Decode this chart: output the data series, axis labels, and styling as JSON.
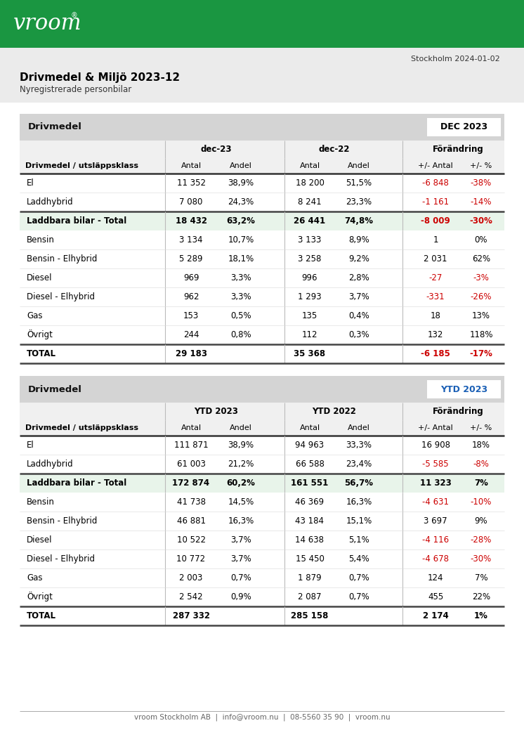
{
  "title": "Drivmedel & Miljö 2023-12",
  "subtitle": "Nyregistrerade personbilar",
  "date": "Stockholm 2024-01-02",
  "footer": "vroom Stockholm AB  |  info@vroom.nu  |  08-5560 35 90  |  vroom.nu",
  "page_bg": "#f0f0f0",
  "content_bg": "#ffffff",
  "header_bg": "#1a9641",
  "section_bg": "#d4d4d4",
  "table_row_bg": "#ffffff",
  "highlight_bg": "#e8f4ea",
  "red_color": "#cc0000",
  "black_color": "#000000",
  "gray_color": "#555555",
  "dec_badge_text": "#000000",
  "ytd_badge_text": "#1a5fb5",
  "dec_section_label": "Drivmedel",
  "dec_badge_label": "DEC 2023",
  "ytd_section_label": "Drivmedel",
  "ytd_badge_label": "YTD 2023",
  "table1": {
    "col_groups": [
      "dec-23",
      "dec-22",
      "Förändring"
    ],
    "col_subheaders": [
      "Antal",
      "Andel",
      "Antal",
      "Andel",
      "+/- Antal",
      "+/- %"
    ],
    "row_header": "Drivmedel / utsläppsklass",
    "rows": [
      {
        "label": "El",
        "vals": [
          "11 352",
          "38,9%",
          "18 200",
          "51,5%",
          "-6 848",
          "-38%"
        ],
        "neg": [
          false,
          false,
          false,
          false,
          true,
          true
        ],
        "bold": false,
        "highlight": false,
        "sep_above": false
      },
      {
        "label": "Laddhybrid",
        "vals": [
          "7 080",
          "24,3%",
          "8 241",
          "23,3%",
          "-1 161",
          "-14%"
        ],
        "neg": [
          false,
          false,
          false,
          false,
          true,
          true
        ],
        "bold": false,
        "highlight": false,
        "sep_above": false
      },
      {
        "label": "Laddbara bilar - Total",
        "vals": [
          "18 432",
          "63,2%",
          "26 441",
          "74,8%",
          "-8 009",
          "-30%"
        ],
        "neg": [
          false,
          false,
          false,
          false,
          true,
          true
        ],
        "bold": true,
        "highlight": true,
        "sep_above": true
      },
      {
        "label": "Bensin",
        "vals": [
          "3 134",
          "10,7%",
          "3 133",
          "8,9%",
          "1",
          "0%"
        ],
        "neg": [
          false,
          false,
          false,
          false,
          false,
          false
        ],
        "bold": false,
        "highlight": false,
        "sep_above": false
      },
      {
        "label": "Bensin - Elhybrid",
        "vals": [
          "5 289",
          "18,1%",
          "3 258",
          "9,2%",
          "2 031",
          "62%"
        ],
        "neg": [
          false,
          false,
          false,
          false,
          false,
          false
        ],
        "bold": false,
        "highlight": false,
        "sep_above": false
      },
      {
        "label": "Diesel",
        "vals": [
          "969",
          "3,3%",
          "996",
          "2,8%",
          "-27",
          "-3%"
        ],
        "neg": [
          false,
          false,
          false,
          false,
          true,
          true
        ],
        "bold": false,
        "highlight": false,
        "sep_above": false
      },
      {
        "label": "Diesel - Elhybrid",
        "vals": [
          "962",
          "3,3%",
          "1 293",
          "3,7%",
          "-331",
          "-26%"
        ],
        "neg": [
          false,
          false,
          false,
          false,
          true,
          true
        ],
        "bold": false,
        "highlight": false,
        "sep_above": false
      },
      {
        "label": "Gas",
        "vals": [
          "153",
          "0,5%",
          "135",
          "0,4%",
          "18",
          "13%"
        ],
        "neg": [
          false,
          false,
          false,
          false,
          false,
          false
        ],
        "bold": false,
        "highlight": false,
        "sep_above": false
      },
      {
        "label": "Övrigt",
        "vals": [
          "244",
          "0,8%",
          "112",
          "0,3%",
          "132",
          "118%"
        ],
        "neg": [
          false,
          false,
          false,
          false,
          false,
          false
        ],
        "bold": false,
        "highlight": false,
        "sep_above": false
      },
      {
        "label": "TOTAL",
        "vals": [
          "29 183",
          "",
          "35 368",
          "",
          "-6 185",
          "-17%"
        ],
        "neg": [
          false,
          false,
          false,
          false,
          true,
          true
        ],
        "bold": true,
        "highlight": false,
        "sep_above": true
      }
    ]
  },
  "table2": {
    "col_groups": [
      "YTD 2023",
      "YTD 2022",
      "Förändring"
    ],
    "col_subheaders": [
      "Antal",
      "Andel",
      "Antal",
      "Andel",
      "+/- Antal",
      "+/- %"
    ],
    "row_header": "Drivmedel / utsläppsklass",
    "rows": [
      {
        "label": "El",
        "vals": [
          "111 871",
          "38,9%",
          "94 963",
          "33,3%",
          "16 908",
          "18%"
        ],
        "neg": [
          false,
          false,
          false,
          false,
          false,
          false
        ],
        "bold": false,
        "highlight": false,
        "sep_above": false
      },
      {
        "label": "Laddhybrid",
        "vals": [
          "61 003",
          "21,2%",
          "66 588",
          "23,4%",
          "-5 585",
          "-8%"
        ],
        "neg": [
          false,
          false,
          false,
          false,
          true,
          true
        ],
        "bold": false,
        "highlight": false,
        "sep_above": false
      },
      {
        "label": "Laddbara bilar - Total",
        "vals": [
          "172 874",
          "60,2%",
          "161 551",
          "56,7%",
          "11 323",
          "7%"
        ],
        "neg": [
          false,
          false,
          false,
          false,
          false,
          false
        ],
        "bold": true,
        "highlight": true,
        "sep_above": true
      },
      {
        "label": "Bensin",
        "vals": [
          "41 738",
          "14,5%",
          "46 369",
          "16,3%",
          "-4 631",
          "-10%"
        ],
        "neg": [
          false,
          false,
          false,
          false,
          true,
          true
        ],
        "bold": false,
        "highlight": false,
        "sep_above": false
      },
      {
        "label": "Bensin - Elhybrid",
        "vals": [
          "46 881",
          "16,3%",
          "43 184",
          "15,1%",
          "3 697",
          "9%"
        ],
        "neg": [
          false,
          false,
          false,
          false,
          false,
          false
        ],
        "bold": false,
        "highlight": false,
        "sep_above": false
      },
      {
        "label": "Diesel",
        "vals": [
          "10 522",
          "3,7%",
          "14 638",
          "5,1%",
          "-4 116",
          "-28%"
        ],
        "neg": [
          false,
          false,
          false,
          false,
          true,
          true
        ],
        "bold": false,
        "highlight": false,
        "sep_above": false
      },
      {
        "label": "Diesel - Elhybrid",
        "vals": [
          "10 772",
          "3,7%",
          "15 450",
          "5,4%",
          "-4 678",
          "-30%"
        ],
        "neg": [
          false,
          false,
          false,
          false,
          true,
          true
        ],
        "bold": false,
        "highlight": false,
        "sep_above": false
      },
      {
        "label": "Gas",
        "vals": [
          "2 003",
          "0,7%",
          "1 879",
          "0,7%",
          "124",
          "7%"
        ],
        "neg": [
          false,
          false,
          false,
          false,
          false,
          false
        ],
        "bold": false,
        "highlight": false,
        "sep_above": false
      },
      {
        "label": "Övrigt",
        "vals": [
          "2 542",
          "0,9%",
          "2 087",
          "0,7%",
          "455",
          "22%"
        ],
        "neg": [
          false,
          false,
          false,
          false,
          false,
          false
        ],
        "bold": false,
        "highlight": false,
        "sep_above": false
      },
      {
        "label": "TOTAL",
        "vals": [
          "287 332",
          "",
          "285 158",
          "",
          "2 174",
          "1%"
        ],
        "neg": [
          false,
          false,
          false,
          false,
          false,
          false
        ],
        "bold": true,
        "highlight": false,
        "sep_above": true
      }
    ]
  }
}
